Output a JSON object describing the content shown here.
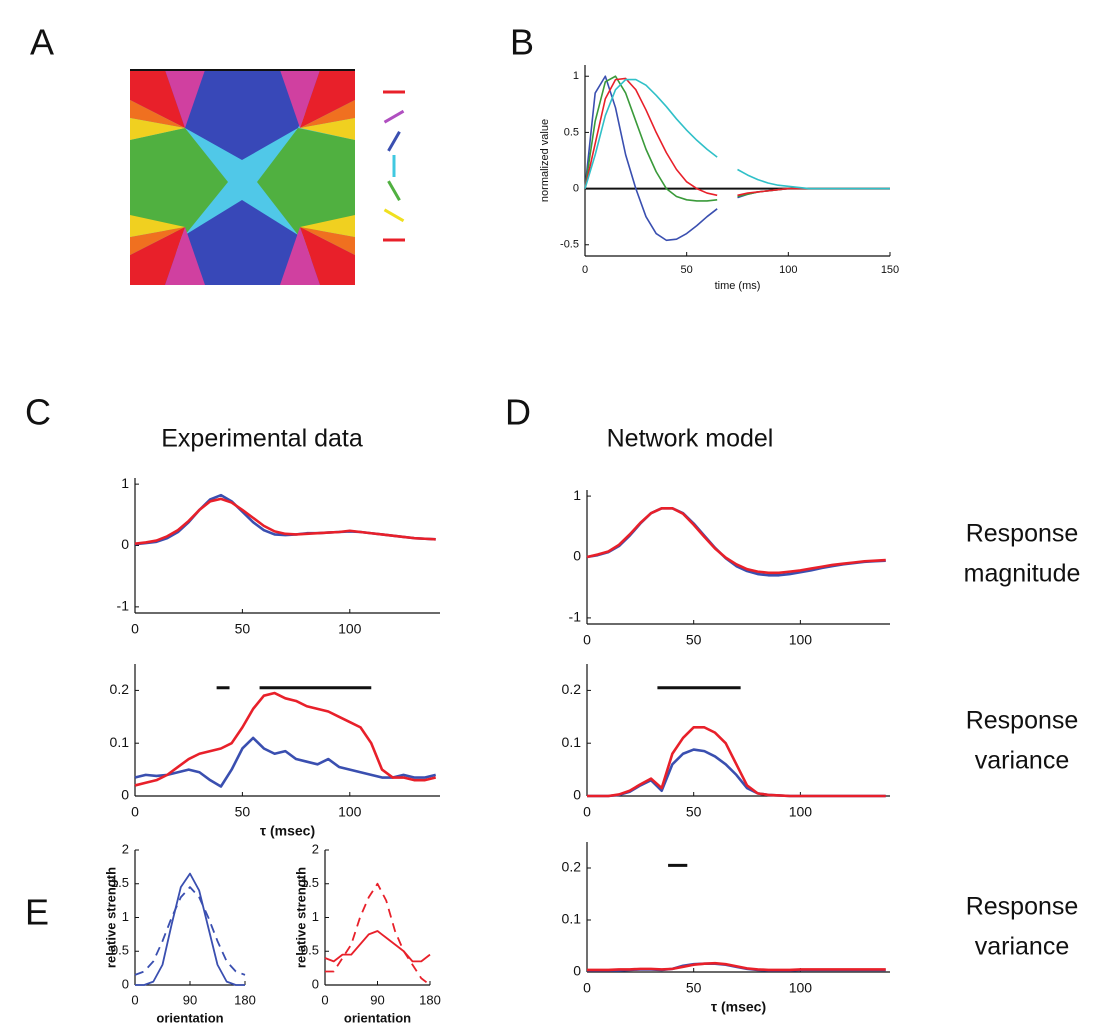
{
  "chart_data": [
    {
      "type": "orientation-map",
      "panel": "A",
      "orientation_colors": [
        "#e8202a",
        "#b04fc0",
        "#3a4fb0",
        "#40c8e0",
        "#50b040",
        "#f0e020",
        "#e8202a"
      ]
    },
    {
      "type": "line",
      "panel": "B",
      "ylabel": "normalized value",
      "xlabel": "time (ms)",
      "xlim": [
        0,
        150
      ],
      "ylim": [
        -0.6,
        1.1
      ],
      "xticks": [
        0,
        50,
        100,
        150
      ],
      "yticks": [
        -0.5,
        0,
        0.5,
        1
      ],
      "zero_line": true,
      "x": [
        0,
        5,
        10,
        15,
        20,
        25,
        30,
        35,
        40,
        45,
        50,
        55,
        60,
        65,
        70,
        75,
        80,
        85,
        90,
        95,
        100,
        105,
        110,
        115,
        120,
        125,
        130,
        135,
        140,
        145,
        150
      ],
      "series": [
        {
          "color": "#3a4fb0",
          "values": [
            0,
            0.85,
            1.0,
            0.72,
            0.3,
            0.0,
            -0.25,
            -0.4,
            -0.46,
            -0.45,
            -0.4,
            -0.33,
            -0.25,
            -0.18,
            null,
            -0.08,
            -0.05,
            -0.03,
            -0.02,
            -0.01,
            0,
            0,
            0,
            0,
            0,
            0,
            0,
            0,
            0,
            0,
            0
          ]
        },
        {
          "color": "#3a9a3a",
          "values": [
            0,
            0.6,
            0.95,
            1.0,
            0.85,
            0.6,
            0.35,
            0.15,
            0.0,
            -0.07,
            -0.1,
            -0.11,
            -0.11,
            -0.1,
            null,
            -0.07,
            -0.05,
            -0.03,
            -0.02,
            -0.01,
            0,
            0,
            0,
            0,
            0,
            0,
            0,
            0,
            0,
            0,
            0
          ]
        },
        {
          "color": "#e8202a",
          "values": [
            0,
            0.4,
            0.8,
            0.97,
            0.98,
            0.88,
            0.7,
            0.5,
            0.32,
            0.17,
            0.06,
            0.0,
            -0.04,
            -0.06,
            null,
            -0.06,
            -0.04,
            -0.03,
            -0.02,
            -0.01,
            0,
            0,
            0,
            0,
            0,
            0,
            0,
            0,
            0,
            0,
            0
          ]
        },
        {
          "color": "#30c0c8",
          "values": [
            0,
            0.3,
            0.65,
            0.88,
            0.97,
            0.97,
            0.92,
            0.83,
            0.73,
            0.62,
            0.52,
            0.43,
            0.35,
            0.28,
            null,
            0.17,
            0.12,
            0.08,
            0.05,
            0.03,
            0.02,
            0.01,
            0,
            0,
            0,
            0,
            0,
            0,
            0,
            0,
            0
          ]
        }
      ]
    },
    {
      "type": "line",
      "panel": "C",
      "title": "Experimental data",
      "xlim": [
        0,
        142
      ],
      "ylim": [
        -1.1,
        1.1
      ],
      "xticks": [
        0,
        50,
        100
      ],
      "yticks": [
        -1,
        0,
        1
      ],
      "x": [
        0,
        5,
        10,
        15,
        20,
        25,
        30,
        35,
        40,
        45,
        50,
        55,
        60,
        65,
        70,
        75,
        80,
        85,
        90,
        95,
        100,
        105,
        110,
        115,
        120,
        125,
        130,
        135,
        140
      ],
      "series": [
        {
          "color": "#3a4fb0",
          "values": [
            0.02,
            0.04,
            0.06,
            0.12,
            0.22,
            0.38,
            0.58,
            0.75,
            0.82,
            0.72,
            0.55,
            0.38,
            0.25,
            0.18,
            0.17,
            0.18,
            0.2,
            0.2,
            0.21,
            0.22,
            0.23,
            0.22,
            0.2,
            0.18,
            0.16,
            0.14,
            0.12,
            0.11,
            0.1
          ]
        },
        {
          "color": "#e8202a",
          "values": [
            0.03,
            0.05,
            0.08,
            0.15,
            0.25,
            0.4,
            0.58,
            0.72,
            0.76,
            0.7,
            0.58,
            0.45,
            0.32,
            0.23,
            0.19,
            0.18,
            0.19,
            0.2,
            0.21,
            0.22,
            0.24,
            0.22,
            0.2,
            0.18,
            0.16,
            0.14,
            0.12,
            0.11,
            0.1
          ]
        }
      ]
    },
    {
      "type": "line",
      "xlabel": "τ (msec)",
      "xlim": [
        0,
        142
      ],
      "ylim": [
        0,
        0.25
      ],
      "xticks": [
        0,
        50,
        100
      ],
      "yticks": [
        0,
        0.1,
        0.2
      ],
      "sig_bars": [
        [
          38,
          44
        ],
        [
          58,
          110
        ]
      ],
      "sig_y": 0.205,
      "x": [
        0,
        5,
        10,
        15,
        20,
        25,
        30,
        35,
        40,
        45,
        50,
        55,
        60,
        65,
        70,
        75,
        80,
        85,
        90,
        95,
        100,
        105,
        110,
        115,
        120,
        125,
        130,
        135,
        140
      ],
      "series": [
        {
          "color": "#3a4fb0",
          "values": [
            0.035,
            0.04,
            0.038,
            0.04,
            0.045,
            0.05,
            0.045,
            0.03,
            0.018,
            0.05,
            0.09,
            0.11,
            0.09,
            0.08,
            0.085,
            0.07,
            0.065,
            0.06,
            0.07,
            0.055,
            0.05,
            0.045,
            0.04,
            0.035,
            0.035,
            0.04,
            0.035,
            0.035,
            0.04
          ]
        },
        {
          "color": "#e8202a",
          "values": [
            0.02,
            0.025,
            0.03,
            0.04,
            0.055,
            0.07,
            0.08,
            0.085,
            0.09,
            0.1,
            0.13,
            0.165,
            0.19,
            0.195,
            0.185,
            0.18,
            0.17,
            0.165,
            0.16,
            0.15,
            0.14,
            0.13,
            0.1,
            0.05,
            0.035,
            0.035,
            0.03,
            0.03,
            0.035
          ]
        }
      ]
    },
    {
      "type": "line",
      "panel": "D",
      "title": "Network model",
      "xlim": [
        0,
        142
      ],
      "ylim": [
        -1.1,
        1.1
      ],
      "xticks": [
        0,
        50,
        100
      ],
      "yticks": [
        -1,
        0,
        1
      ],
      "x": [
        0,
        5,
        10,
        15,
        20,
        25,
        30,
        35,
        40,
        45,
        50,
        55,
        60,
        65,
        70,
        75,
        80,
        85,
        90,
        95,
        100,
        105,
        110,
        115,
        120,
        125,
        130,
        135,
        140
      ],
      "series": [
        {
          "color": "#3a4fb0",
          "values": [
            0,
            0.03,
            0.08,
            0.18,
            0.35,
            0.55,
            0.72,
            0.8,
            0.8,
            0.72,
            0.55,
            0.35,
            0.15,
            -0.02,
            -0.15,
            -0.23,
            -0.28,
            -0.3,
            -0.3,
            -0.28,
            -0.25,
            -0.22,
            -0.18,
            -0.15,
            -0.12,
            -0.1,
            -0.08,
            -0.07,
            -0.06
          ]
        },
        {
          "color": "#e8202a",
          "values": [
            0,
            0.04,
            0.09,
            0.2,
            0.37,
            0.56,
            0.72,
            0.8,
            0.8,
            0.71,
            0.53,
            0.33,
            0.14,
            -0.01,
            -0.12,
            -0.2,
            -0.24,
            -0.26,
            -0.26,
            -0.24,
            -0.22,
            -0.19,
            -0.16,
            -0.13,
            -0.11,
            -0.09,
            -0.07,
            -0.06,
            -0.05
          ]
        }
      ]
    },
    {
      "type": "line",
      "xlim": [
        0,
        142
      ],
      "ylim": [
        0,
        0.25
      ],
      "xticks": [
        0,
        50,
        100
      ],
      "yticks": [
        0,
        0.1,
        0.2
      ],
      "sig_bars": [
        [
          33,
          72
        ]
      ],
      "sig_y": 0.205,
      "x": [
        0,
        5,
        10,
        15,
        20,
        25,
        30,
        35,
        40,
        45,
        50,
        55,
        60,
        65,
        70,
        75,
        80,
        85,
        90,
        95,
        100,
        105,
        110,
        115,
        120,
        125,
        130,
        135,
        140
      ],
      "series": [
        {
          "color": "#3a4fb0",
          "values": [
            0,
            0,
            0,
            0.002,
            0.008,
            0.02,
            0.03,
            0.01,
            0.06,
            0.08,
            0.088,
            0.085,
            0.075,
            0.06,
            0.04,
            0.015,
            0.005,
            0.002,
            0.001,
            0,
            0,
            0,
            0,
            0,
            0,
            0,
            0,
            0,
            0
          ]
        },
        {
          "color": "#e8202a",
          "values": [
            0,
            0,
            0,
            0.003,
            0.01,
            0.022,
            0.033,
            0.015,
            0.08,
            0.11,
            0.13,
            0.13,
            0.12,
            0.1,
            0.06,
            0.02,
            0.005,
            0.002,
            0.001,
            0,
            0,
            0,
            0,
            0,
            0,
            0,
            0,
            0,
            0
          ]
        }
      ]
    },
    {
      "type": "line",
      "xlabel": "τ (msec)",
      "xlim": [
        0,
        142
      ],
      "ylim": [
        0,
        0.25
      ],
      "xticks": [
        0,
        50,
        100
      ],
      "yticks": [
        0,
        0.1,
        0.2
      ],
      "sig_bars": [
        [
          38,
          47
        ]
      ],
      "sig_y": 0.205,
      "x": [
        0,
        5,
        10,
        15,
        20,
        25,
        30,
        35,
        40,
        45,
        50,
        55,
        60,
        65,
        70,
        75,
        80,
        85,
        90,
        95,
        100,
        105,
        110,
        115,
        120,
        125,
        130,
        135,
        140
      ],
      "series": [
        {
          "color": "#3a4fb0",
          "values": [
            0.003,
            0.003,
            0.003,
            0.003,
            0.004,
            0.005,
            0.005,
            0.004,
            0.006,
            0.012,
            0.015,
            0.016,
            0.016,
            0.014,
            0.01,
            0.006,
            0.004,
            0.003,
            0.003,
            0.003,
            0.004,
            0.004,
            0.004,
            0.004,
            0.004,
            0.004,
            0.004,
            0.004,
            0.004
          ]
        },
        {
          "color": "#e8202a",
          "values": [
            0.004,
            0.004,
            0.004,
            0.005,
            0.005,
            0.006,
            0.006,
            0.005,
            0.006,
            0.01,
            0.014,
            0.016,
            0.017,
            0.015,
            0.011,
            0.007,
            0.005,
            0.004,
            0.004,
            0.004,
            0.005,
            0.005,
            0.005,
            0.005,
            0.005,
            0.005,
            0.005,
            0.005,
            0.005
          ]
        }
      ]
    },
    {
      "type": "line",
      "panel": "E",
      "ylabel": "relative strength",
      "xlabel": "orientation",
      "xlim": [
        0,
        180
      ],
      "ylim": [
        0,
        2
      ],
      "xticks": [
        0,
        90,
        180
      ],
      "yticks": [
        0,
        0.5,
        1,
        1.5,
        2
      ],
      "x": [
        0,
        15,
        30,
        45,
        60,
        75,
        90,
        105,
        120,
        135,
        150,
        165,
        180
      ],
      "series": [
        {
          "color": "#3a4fb0",
          "dash": false,
          "values": [
            0,
            0,
            0.05,
            0.3,
            0.9,
            1.45,
            1.65,
            1.4,
            0.85,
            0.3,
            0.05,
            0,
            0
          ]
        },
        {
          "color": "#3a4fb0",
          "dash": true,
          "values": [
            0.15,
            0.2,
            0.35,
            0.65,
            1.0,
            1.3,
            1.45,
            1.3,
            1.0,
            0.65,
            0.35,
            0.2,
            0.15
          ]
        }
      ]
    },
    {
      "type": "line",
      "ylabel": "relative strength",
      "xlabel": "orientation",
      "xlim": [
        0,
        180
      ],
      "ylim": [
        0,
        2
      ],
      "xticks": [
        0,
        90,
        180
      ],
      "yticks": [
        0,
        0.5,
        1,
        1.5,
        2
      ],
      "x": [
        0,
        15,
        30,
        45,
        60,
        75,
        90,
        105,
        120,
        135,
        150,
        165,
        180
      ],
      "series": [
        {
          "color": "#e8202a",
          "dash": false,
          "values": [
            0.4,
            0.35,
            0.45,
            0.45,
            0.6,
            0.75,
            0.8,
            0.7,
            0.6,
            0.5,
            0.35,
            0.35,
            0.45
          ]
        },
        {
          "color": "#e8202a",
          "dash": true,
          "values": [
            0.2,
            0.2,
            0.4,
            0.6,
            1.0,
            1.3,
            1.5,
            1.25,
            0.8,
            0.5,
            0.3,
            0.1,
            0.0
          ]
        }
      ]
    }
  ],
  "row_labels": [
    [
      "Response",
      "magnitude"
    ],
    [
      "Response",
      "variance"
    ],
    [
      "Response",
      "variance"
    ]
  ]
}
